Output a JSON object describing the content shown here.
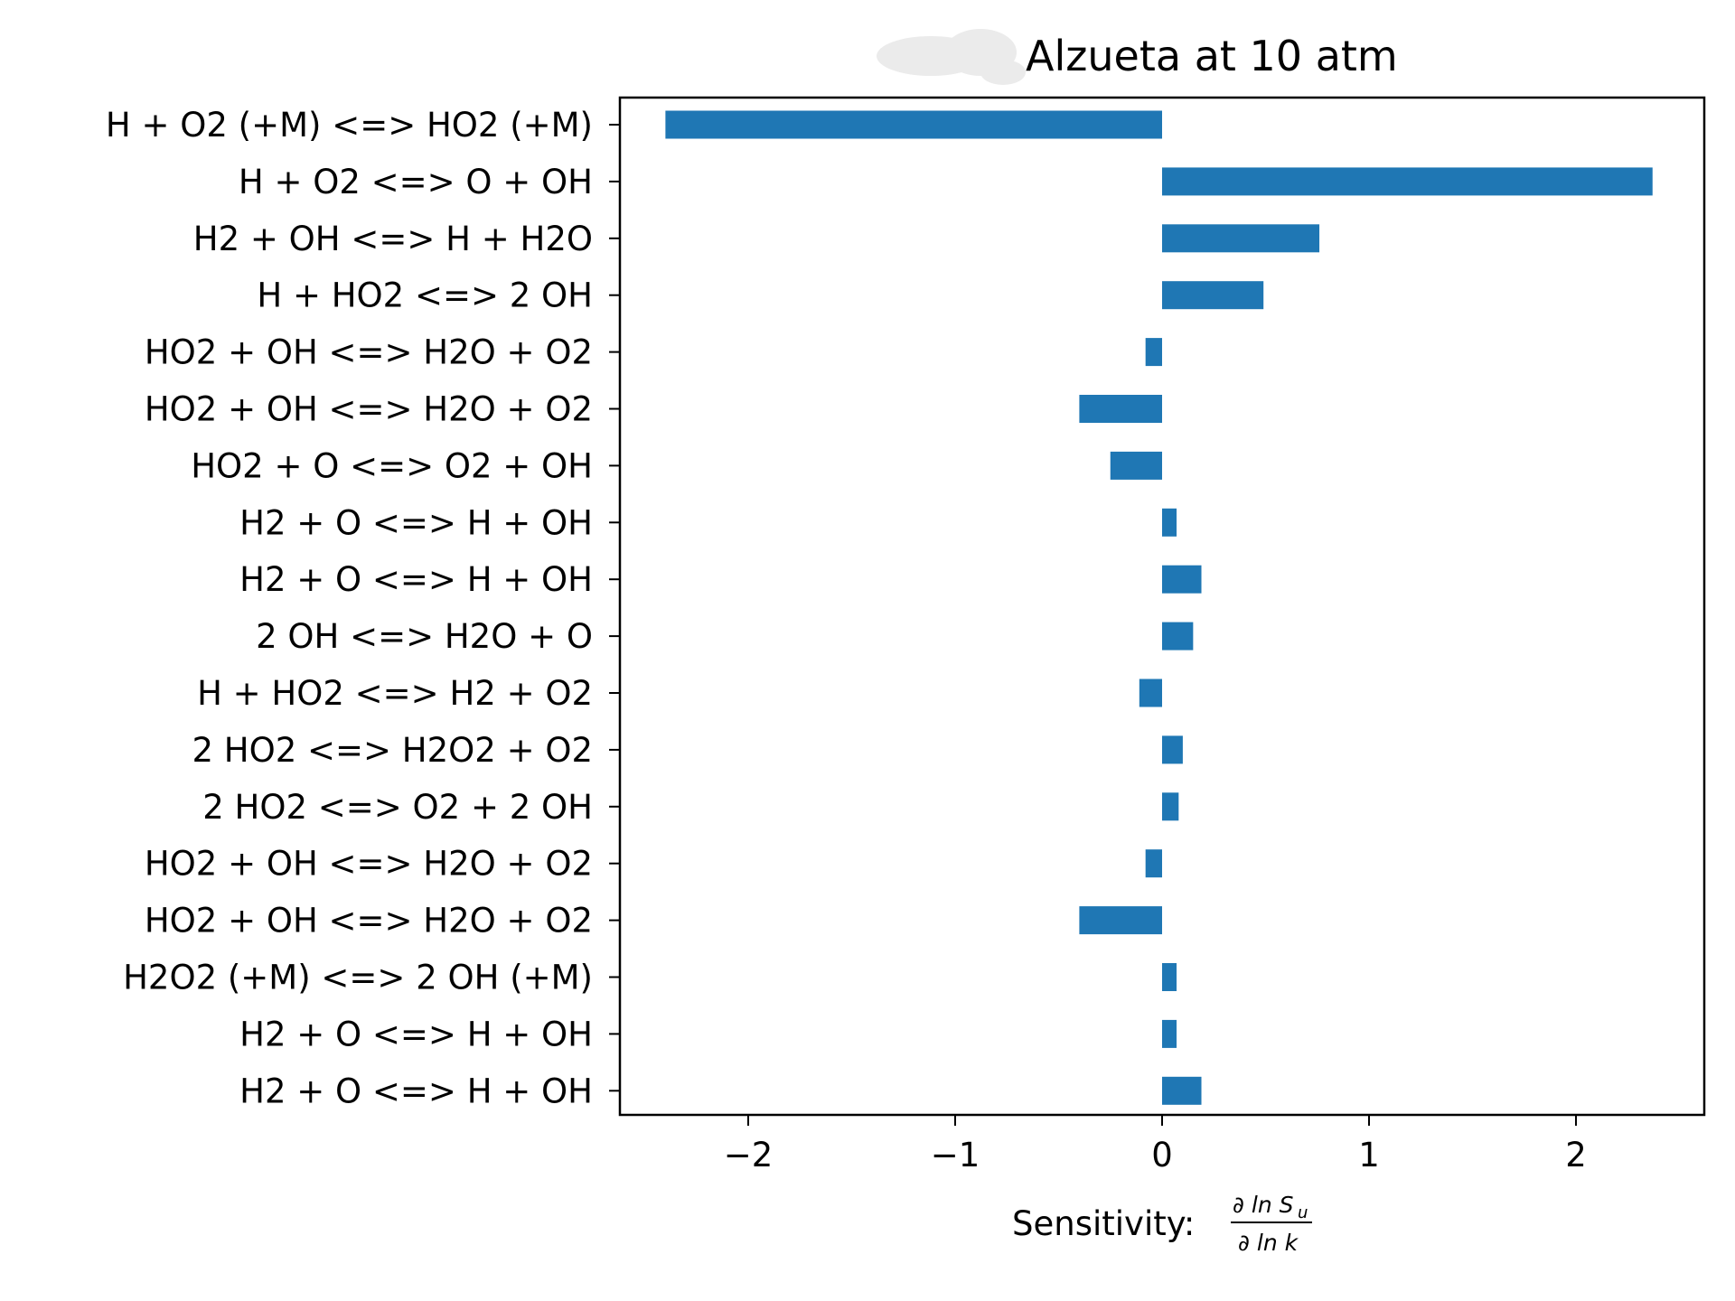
{
  "chart_data": {
    "type": "bar",
    "orientation": "horizontal",
    "title": "Alzueta at 10 atm",
    "xlabel": "Sensitivity:",
    "xlabel_math": {
      "numerator": "∂ ln S",
      "numerator_sub": "u",
      "denominator": "∂ ln k"
    },
    "xlim": [
      -2.62,
      2.62
    ],
    "xticks": [
      -2,
      -1,
      0,
      1,
      2
    ],
    "xtick_labels": [
      "−2",
      "−1",
      "0",
      "1",
      "2"
    ],
    "grid": false,
    "bar_color": "#1f77b4",
    "categories": [
      "H + O2 (+M) <=> HO2 (+M)",
      "H + O2 <=> O + OH",
      "H2 + OH <=> H + H2O",
      "H + HO2 <=> 2 OH",
      "HO2 + OH <=> H2O + O2",
      "HO2 + OH <=> H2O + O2",
      "HO2 + O <=> O2 + OH",
      "H2 + O <=> H + OH",
      "H2 + O <=> H + OH",
      "2 OH <=> H2O + O",
      "H + HO2 <=> H2 + O2",
      "2 HO2 <=> H2O2 + O2",
      "2 HO2 <=> O2 + 2 OH",
      "HO2 + OH <=> H2O + O2",
      "HO2 + OH <=> H2O + O2",
      "H2O2 (+M) <=> 2 OH (+M)",
      "H2 + O <=> H + OH",
      "H2 + O <=> H + OH"
    ],
    "values": [
      -2.4,
      2.37,
      0.76,
      0.49,
      -0.08,
      -0.4,
      -0.25,
      0.07,
      0.19,
      0.15,
      -0.11,
      0.1,
      0.08,
      -0.08,
      -0.4,
      0.07,
      0.07,
      0.19
    ]
  }
}
